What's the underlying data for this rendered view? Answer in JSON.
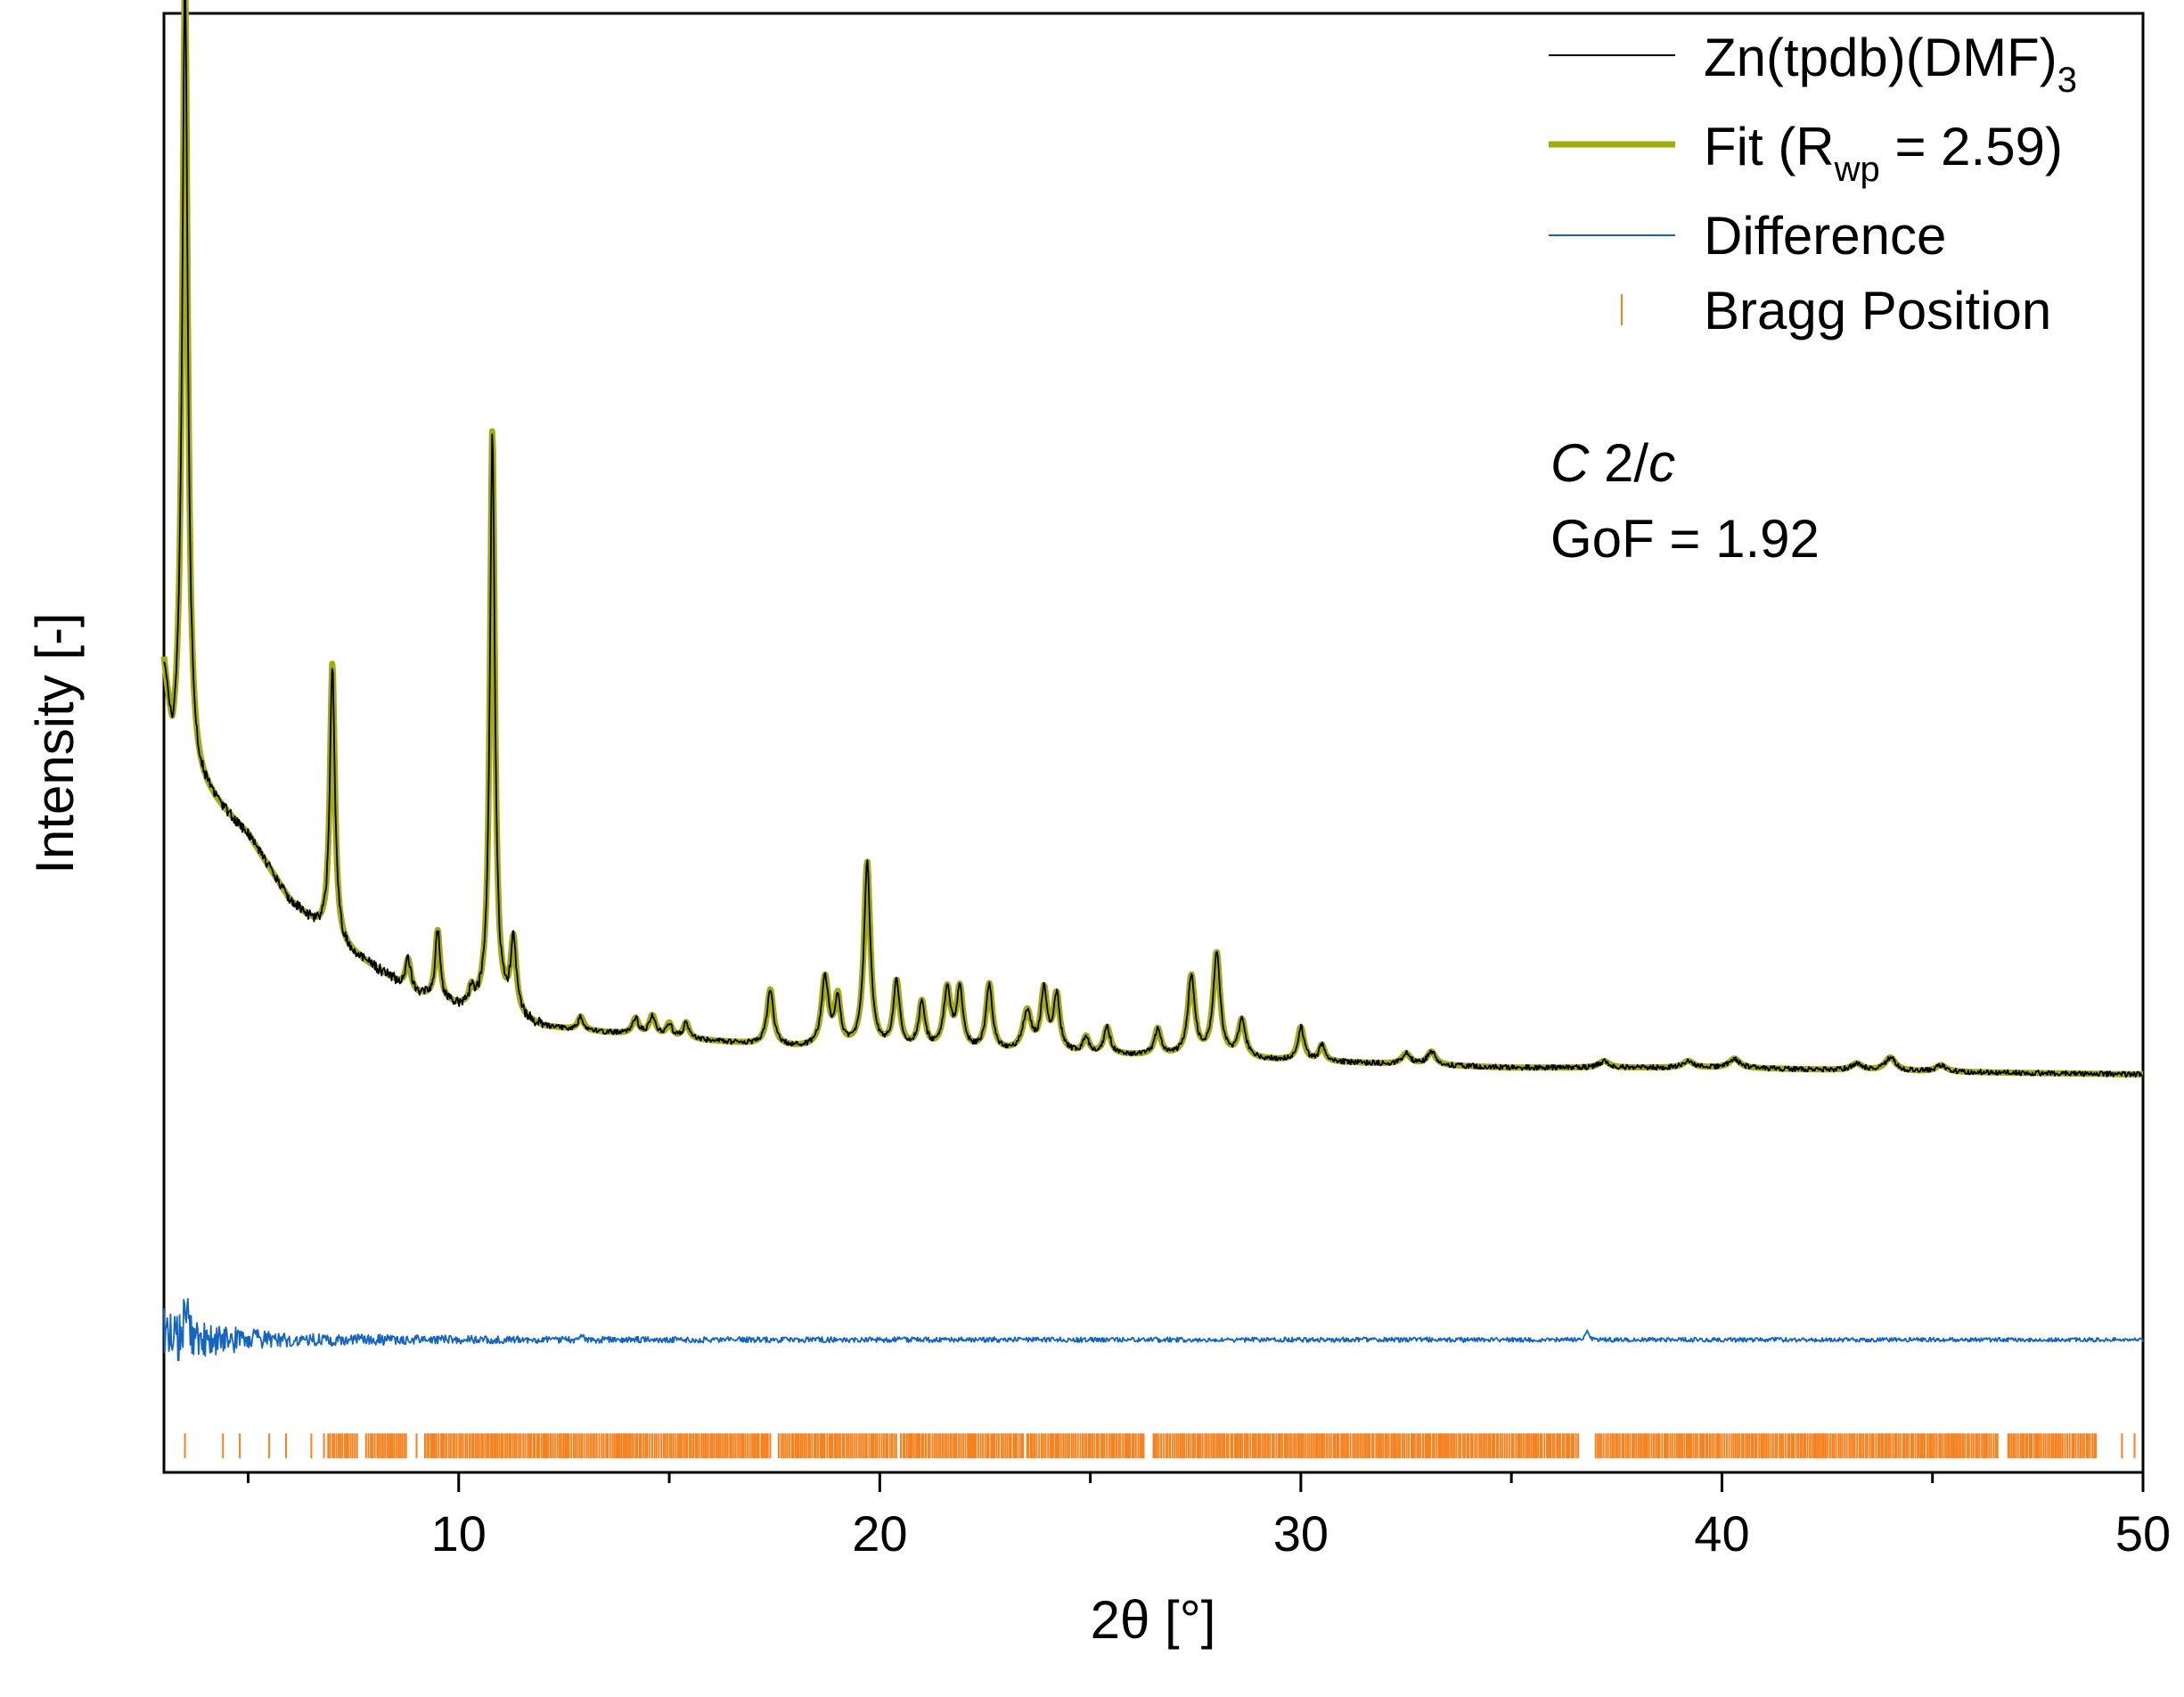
{
  "chart_data": {
    "type": "line",
    "title": "",
    "xlabel": "2θ [°]",
    "ylabel": "Intensity [-]",
    "xlim": [
      3,
      50
    ],
    "ylim": [
      -1.0,
      10.0
    ],
    "x_ticks": [
      10,
      20,
      30,
      40,
      50
    ],
    "x_minor_ticks": [
      5,
      15,
      25,
      35,
      45
    ],
    "y_ticks_shown": false,
    "legend_position": "top-right",
    "series": [
      {
        "name": "Zn(tpdb)(DMF)3",
        "legend_main": "Zn(tpdb)(DMF)",
        "legend_sub": "3",
        "color": "#000000",
        "style": "thin-line",
        "background": [
          [
            3.0,
            5.0
          ],
          [
            3.2,
            4.3
          ],
          [
            4.0,
            4.1
          ],
          [
            5.0,
            3.8
          ],
          [
            6.0,
            3.3
          ],
          [
            7.0,
            3.0
          ],
          [
            8.0,
            2.8
          ],
          [
            9.0,
            2.6
          ],
          [
            10.0,
            2.5
          ],
          [
            11.0,
            2.45
          ],
          [
            12.0,
            2.35
          ],
          [
            14.0,
            2.3
          ],
          [
            16.0,
            2.25
          ],
          [
            18.0,
            2.2
          ],
          [
            20.0,
            2.18
          ],
          [
            25.0,
            2.15
          ],
          [
            30.0,
            2.1
          ],
          [
            35.0,
            2.05
          ],
          [
            40.0,
            2.05
          ],
          [
            45.0,
            2.02
          ],
          [
            50.0,
            2.0
          ]
        ],
        "peaks": [
          {
            "pos": 3.5,
            "height": 6.0,
            "width": 0.08
          },
          {
            "pos": 7.0,
            "height": 2.1,
            "width": 0.07
          },
          {
            "pos": 8.8,
            "height": 0.22,
            "width": 0.07
          },
          {
            "pos": 9.5,
            "height": 0.52,
            "width": 0.07
          },
          {
            "pos": 10.3,
            "height": 0.12,
            "width": 0.06
          },
          {
            "pos": 10.8,
            "height": 4.4,
            "width": 0.07
          },
          {
            "pos": 11.3,
            "height": 0.55,
            "width": 0.08
          },
          {
            "pos": 12.9,
            "height": 0.1,
            "width": 0.08
          },
          {
            "pos": 14.2,
            "height": 0.12,
            "width": 0.09
          },
          {
            "pos": 14.6,
            "height": 0.15,
            "width": 0.09
          },
          {
            "pos": 15.0,
            "height": 0.1,
            "width": 0.08
          },
          {
            "pos": 15.4,
            "height": 0.12,
            "width": 0.08
          },
          {
            "pos": 17.4,
            "height": 0.42,
            "width": 0.09
          },
          {
            "pos": 18.7,
            "height": 0.52,
            "width": 0.1
          },
          {
            "pos": 19.0,
            "height": 0.36,
            "width": 0.08
          },
          {
            "pos": 19.7,
            "height": 1.4,
            "width": 0.09
          },
          {
            "pos": 20.4,
            "height": 0.5,
            "width": 0.09
          },
          {
            "pos": 21.0,
            "height": 0.35,
            "width": 0.09
          },
          {
            "pos": 21.6,
            "height": 0.45,
            "width": 0.1
          },
          {
            "pos": 21.9,
            "height": 0.45,
            "width": 0.09
          },
          {
            "pos": 22.6,
            "height": 0.5,
            "width": 0.09
          },
          {
            "pos": 23.5,
            "height": 0.3,
            "width": 0.12
          },
          {
            "pos": 23.9,
            "height": 0.45,
            "width": 0.09
          },
          {
            "pos": 24.2,
            "height": 0.42,
            "width": 0.09
          },
          {
            "pos": 24.9,
            "height": 0.12,
            "width": 0.08
          },
          {
            "pos": 25.4,
            "height": 0.2,
            "width": 0.09
          },
          {
            "pos": 26.6,
            "height": 0.2,
            "width": 0.09
          },
          {
            "pos": 27.4,
            "height": 0.6,
            "width": 0.1
          },
          {
            "pos": 28.0,
            "height": 0.78,
            "width": 0.1
          },
          {
            "pos": 28.6,
            "height": 0.28,
            "width": 0.1
          },
          {
            "pos": 30.0,
            "height": 0.25,
            "width": 0.09
          },
          {
            "pos": 30.5,
            "height": 0.12,
            "width": 0.08
          },
          {
            "pos": 32.5,
            "height": 0.08,
            "width": 0.12
          },
          {
            "pos": 33.1,
            "height": 0.1,
            "width": 0.12
          },
          {
            "pos": 37.2,
            "height": 0.05,
            "width": 0.15
          },
          {
            "pos": 39.2,
            "height": 0.05,
            "width": 0.15
          },
          {
            "pos": 40.3,
            "height": 0.07,
            "width": 0.15
          },
          {
            "pos": 43.2,
            "height": 0.05,
            "width": 0.15
          },
          {
            "pos": 44.0,
            "height": 0.1,
            "width": 0.15
          },
          {
            "pos": 45.2,
            "height": 0.05,
            "width": 0.15
          }
        ],
        "noise_amplitude": 0.02
      },
      {
        "name": "Fit (Rwp = 2.59)",
        "legend_main": "Fit (R",
        "legend_sub": "wp",
        "legend_tail": " = 2.59)",
        "color": "#a3ab12",
        "style": "thick-line"
      },
      {
        "name": "Difference",
        "color": "#1565c0",
        "style": "thin-line",
        "baseline": 0.0,
        "noise_envelope": [
          [
            3.0,
            0.28
          ],
          [
            4.0,
            0.12
          ],
          [
            6.0,
            0.05
          ],
          [
            8.0,
            0.04
          ],
          [
            12.0,
            0.025
          ],
          [
            20.0,
            0.02
          ],
          [
            50.0,
            0.015
          ]
        ],
        "bumps": [
          {
            "pos": 3.5,
            "height": 0.25
          },
          {
            "pos": 12.9,
            "height": 0.05
          },
          {
            "pos": 36.8,
            "height": 0.06
          }
        ]
      },
      {
        "name": "Bragg Position",
        "color": "#f58220",
        "style": "ticks",
        "tick_level": -0.8,
        "dense_ranges": [
          [
            6.9,
            7.6
          ],
          [
            7.8,
            8.8
          ],
          [
            9.2,
            12.5
          ],
          [
            12.5,
            17.4
          ],
          [
            17.6,
            20.4
          ],
          [
            20.5,
            23.4
          ],
          [
            23.5,
            26.3
          ],
          [
            26.5,
            36.6
          ],
          [
            37.0,
            46.6
          ],
          [
            46.8,
            48.9
          ]
        ],
        "sparse_positions": [
          3.5,
          4.4,
          4.8,
          5.5,
          5.9,
          6.5,
          6.8,
          9.0,
          49.5,
          49.8
        ]
      }
    ],
    "annotations": [
      {
        "text_italic_1": "C",
        "text_mid": " 2/",
        "text_italic_2": "c"
      },
      {
        "text": "GoF = 1.92"
      }
    ]
  }
}
